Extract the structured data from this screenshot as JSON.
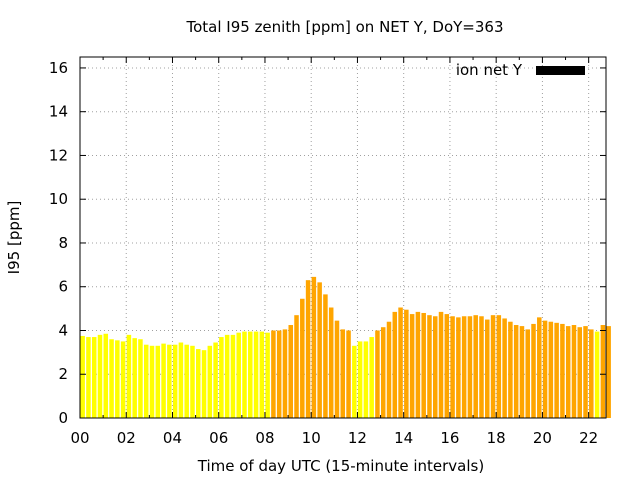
{
  "chart_data": {
    "type": "bar",
    "title": "Total I95 zenith [ppm] on NET Y, DoY=363",
    "xlabel": "Time of day UTC (15-minute intervals)",
    "ylabel": "I95 [ppm]",
    "xlim": [
      0,
      22.75
    ],
    "ylim": [
      0,
      16.5
    ],
    "x_ticks": [
      "00",
      "02",
      "04",
      "06",
      "08",
      "10",
      "12",
      "14",
      "16",
      "18",
      "20",
      "22"
    ],
    "y_ticks": [
      "0",
      "2",
      "4",
      "6",
      "8",
      "10",
      "12",
      "14",
      "16"
    ],
    "grid": true,
    "legend": {
      "label": "ion net Y",
      "color": "#000000",
      "placement": "top-right"
    },
    "colors": {
      "low": "#ffff00",
      "high": "#ffa500"
    },
    "interval_hours": 0.25,
    "values": [
      3.75,
      3.7,
      3.7,
      3.8,
      3.85,
      3.6,
      3.55,
      3.5,
      3.8,
      3.65,
      3.6,
      3.35,
      3.3,
      3.3,
      3.4,
      3.35,
      3.35,
      3.45,
      3.35,
      3.3,
      3.15,
      3.1,
      3.3,
      3.45,
      3.7,
      3.8,
      3.8,
      3.9,
      3.95,
      3.95,
      3.95,
      3.95,
      3.9,
      4.0,
      4.0,
      4.05,
      4.25,
      4.7,
      5.45,
      6.3,
      6.45,
      6.2,
      5.65,
      5.05,
      4.45,
      4.05,
      4.0,
      3.3,
      3.5,
      3.5,
      3.7,
      4.0,
      4.15,
      4.4,
      4.85,
      5.05,
      4.95,
      4.75,
      4.85,
      4.8,
      4.7,
      4.65,
      4.85,
      4.75,
      4.65,
      4.6,
      4.65,
      4.65,
      4.7,
      4.65,
      4.5,
      4.7,
      4.7,
      4.55,
      4.4,
      4.25,
      4.2,
      4.05,
      4.3,
      4.6,
      4.45,
      4.4,
      4.35,
      4.3,
      4.2,
      4.25,
      4.15,
      4.2,
      4.05,
      3.95,
      4.25,
      4.2
    ],
    "levels": [
      "low",
      "low",
      "low",
      "low",
      "low",
      "low",
      "low",
      "low",
      "low",
      "low",
      "low",
      "low",
      "low",
      "low",
      "low",
      "low",
      "low",
      "low",
      "low",
      "low",
      "low",
      "low",
      "low",
      "low",
      "low",
      "low",
      "low",
      "low",
      "low",
      "low",
      "low",
      "low",
      "low",
      "high",
      "high",
      "high",
      "high",
      "high",
      "high",
      "high",
      "high",
      "high",
      "high",
      "high",
      "high",
      "high",
      "high",
      "low",
      "low",
      "low",
      "low",
      "high",
      "high",
      "high",
      "high",
      "high",
      "high",
      "high",
      "high",
      "high",
      "high",
      "high",
      "high",
      "high",
      "high",
      "high",
      "high",
      "high",
      "high",
      "high",
      "high",
      "high",
      "high",
      "high",
      "high",
      "high",
      "high",
      "high",
      "high",
      "high",
      "high",
      "high",
      "high",
      "high",
      "high",
      "high",
      "high",
      "high",
      "high",
      "low",
      "high",
      "high"
    ]
  }
}
